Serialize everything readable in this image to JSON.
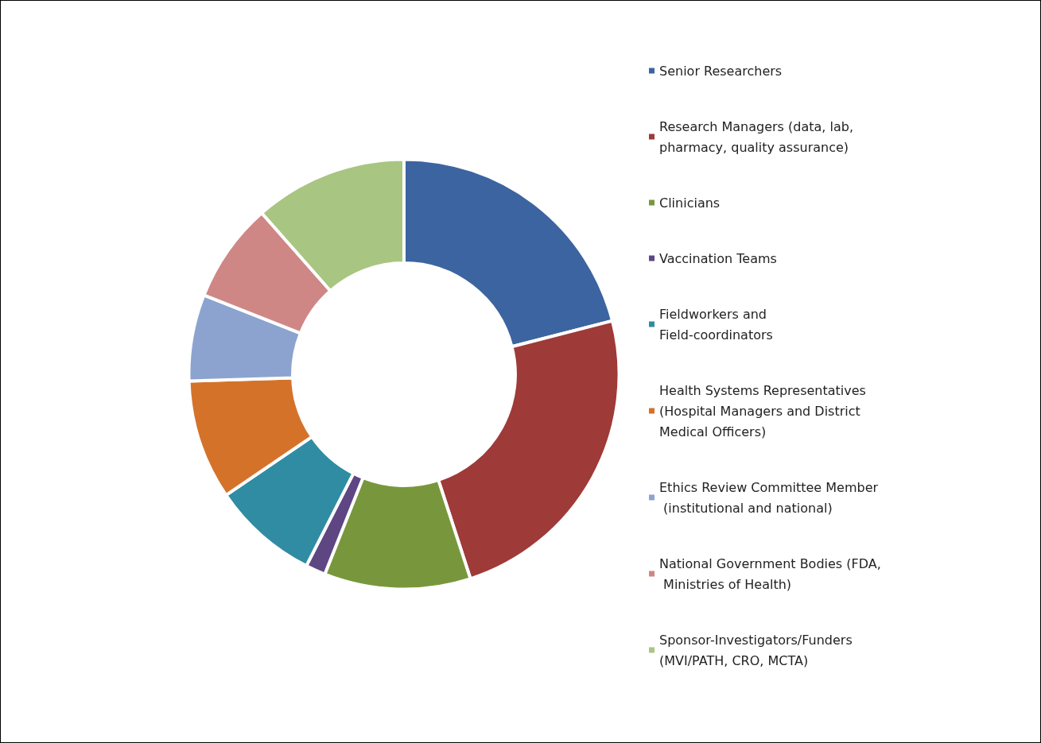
{
  "chart_data": {
    "type": "donut",
    "categories": [
      "Senior Researchers",
      "Research Managers (data, lab, pharmacy, quality assurance)",
      "Clinicians",
      "Vaccination Teams",
      "Fieldworkers and Field-coordinators",
      "Health Systems Representatives (Hospital Managers and District Medical Officers)",
      "Ethics Review Committee Member (institutional and national)",
      "National Government Bodies (FDA, Ministries of Health)",
      "Sponsor-Investigators/Funders (MVI/PATH, CRO, MCTA)"
    ],
    "values": [
      21,
      24,
      11,
      1.5,
      8,
      9,
      6.5,
      7.5,
      11.5
    ],
    "colors": [
      "#3c64a0",
      "#9e3a38",
      "#78973c",
      "#5e4683",
      "#2f8ca3",
      "#d5722a",
      "#8ca3cf",
      "#cf8785",
      "#a9c582"
    ],
    "legend": "right"
  }
}
